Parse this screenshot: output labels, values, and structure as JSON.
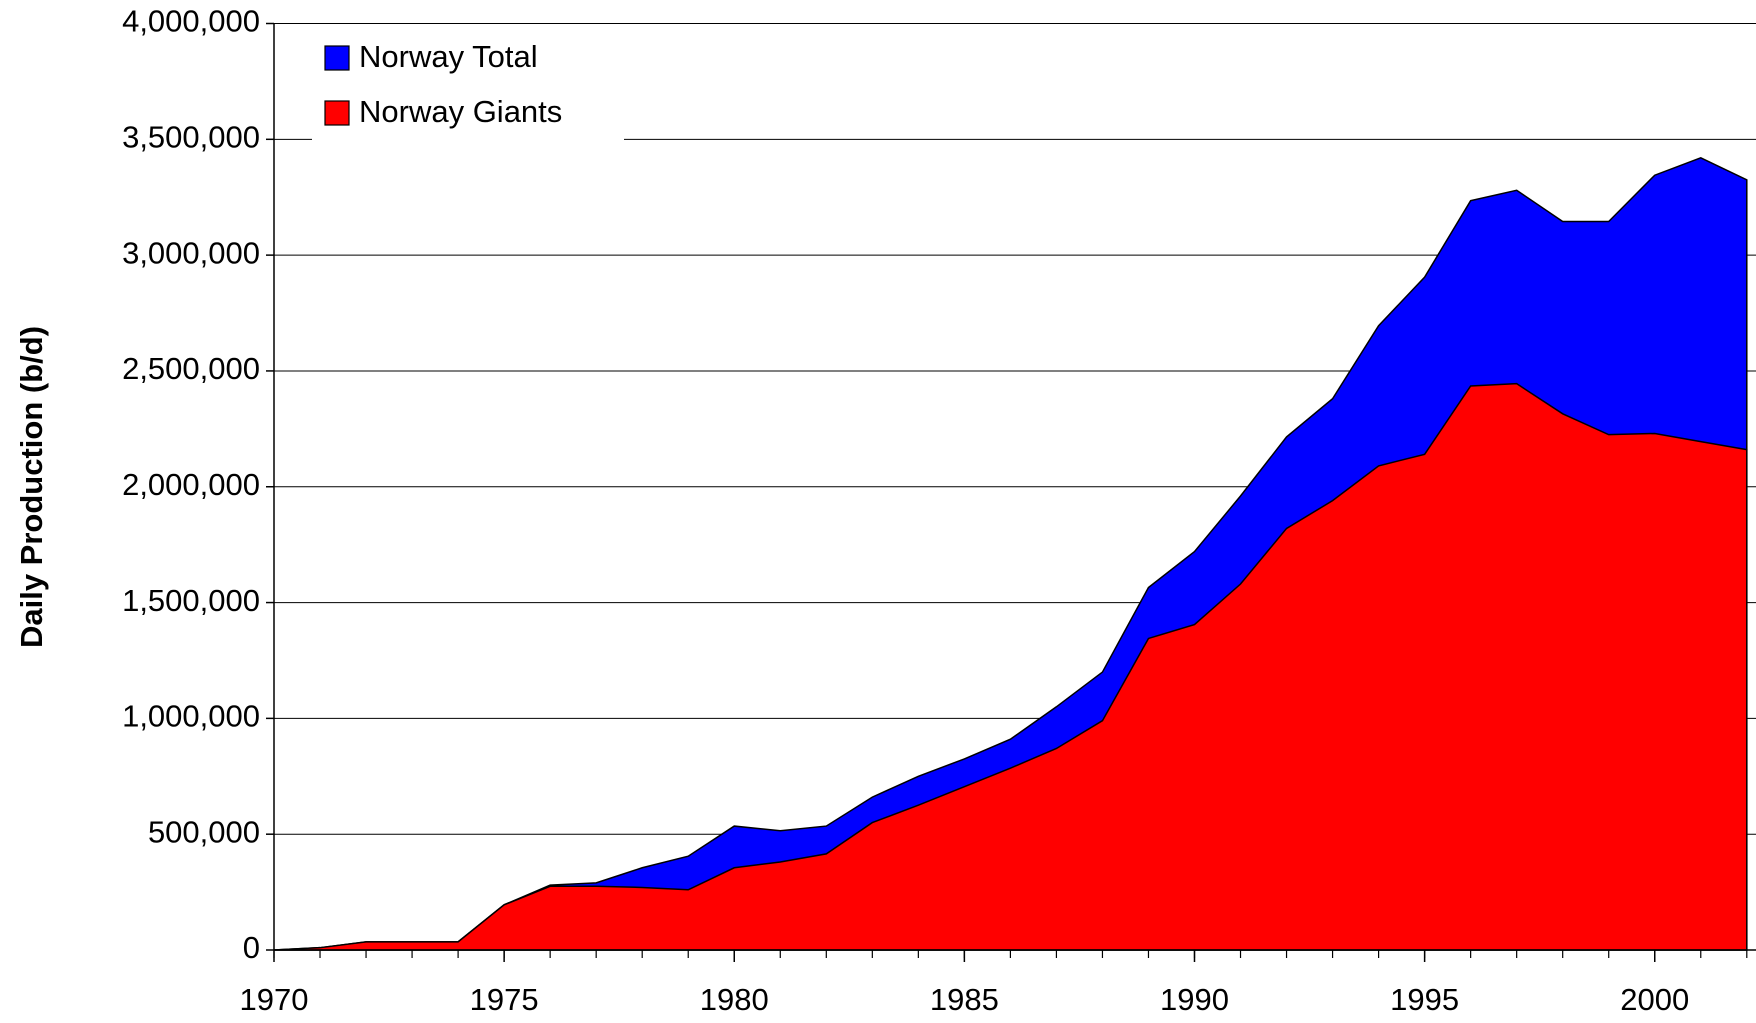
{
  "chart_data": {
    "type": "area",
    "ylabel": "Daily Production (b/d)",
    "x": [
      1970,
      1971,
      1972,
      1973,
      1974,
      1975,
      1976,
      1977,
      1978,
      1979,
      1980,
      1981,
      1982,
      1983,
      1984,
      1985,
      1986,
      1987,
      1988,
      1989,
      1990,
      1991,
      1992,
      1993,
      1994,
      1995,
      1996,
      1997,
      1998,
      1999,
      2000,
      2001,
      2002
    ],
    "series": [
      {
        "name": "Norway Total",
        "color": "#0000ff",
        "values": [
          0,
          10000,
          35000,
          35000,
          35000,
          195000,
          280000,
          290000,
          355000,
          405000,
          535000,
          515000,
          535000,
          660000,
          750000,
          825000,
          910000,
          1050000,
          1200000,
          1565000,
          1720000,
          1960000,
          2215000,
          2380000,
          2695000,
          2905000,
          3235000,
          3280000,
          3145000,
          3145000,
          3345000,
          3420000,
          3325000
        ]
      },
      {
        "name": "Norway Giants",
        "color": "#ff0000",
        "values": [
          0,
          10000,
          35000,
          35000,
          35000,
          195000,
          275000,
          275000,
          270000,
          260000,
          355000,
          380000,
          415000,
          550000,
          625000,
          705000,
          785000,
          870000,
          990000,
          1345000,
          1405000,
          1580000,
          1820000,
          1940000,
          2090000,
          2140000,
          2435000,
          2445000,
          2315000,
          2225000,
          2230000,
          2195000,
          2160000
        ]
      }
    ],
    "xlim": [
      1970,
      2002.2
    ],
    "xticks": [
      1970,
      1975,
      1980,
      1985,
      1990,
      1995,
      2000
    ],
    "ylim": [
      0,
      4000000
    ],
    "yticks": [
      0,
      {
        "value": 500000,
        "label": "500,000"
      },
      {
        "value": 1000000,
        "label": "1,000,000"
      },
      {
        "value": 1500000,
        "label": "1,500,000"
      },
      {
        "value": 2000000,
        "label": "2,000,000"
      },
      {
        "value": 2500000,
        "label": "2,500,000"
      },
      {
        "value": 3000000,
        "label": "3,000,000"
      },
      {
        "value": 3500000,
        "label": "3,500,000"
      },
      {
        "value": 4000000,
        "label": "4,000,000"
      }
    ],
    "grid": true,
    "legend": "upper left"
  }
}
